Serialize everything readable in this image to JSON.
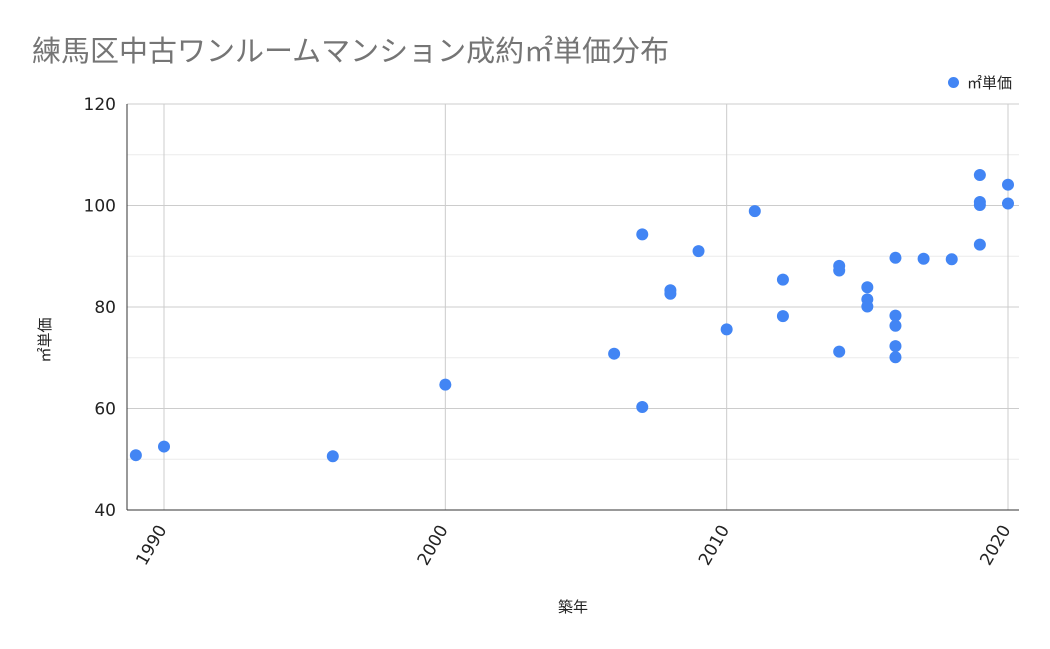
{
  "chart_data": {
    "type": "scatter",
    "title": "練馬区中古ワンルームマンション成約㎡単価分布",
    "xlabel": "築年",
    "ylabel": "㎡単価",
    "xlim": [
      1989,
      2020.4
    ],
    "ylim": [
      40,
      120
    ],
    "x_ticks": [
      1990,
      2000,
      2010,
      2020
    ],
    "y_ticks": [
      40,
      60,
      80,
      100,
      120
    ],
    "grid": true,
    "legend_position": "top-right",
    "series": [
      {
        "name": "㎡単価",
        "color": "#4285F4",
        "points": [
          {
            "x": 1989,
            "y": 50.8
          },
          {
            "x": 1990,
            "y": 52.5
          },
          {
            "x": 1996,
            "y": 50.6
          },
          {
            "x": 2000,
            "y": 64.7
          },
          {
            "x": 2006,
            "y": 70.8
          },
          {
            "x": 2007,
            "y": 94.3
          },
          {
            "x": 2007,
            "y": 60.3
          },
          {
            "x": 2008,
            "y": 83.3
          },
          {
            "x": 2008,
            "y": 82.6
          },
          {
            "x": 2009,
            "y": 91.0
          },
          {
            "x": 2010,
            "y": 75.6
          },
          {
            "x": 2011,
            "y": 98.9
          },
          {
            "x": 2012,
            "y": 85.4
          },
          {
            "x": 2012,
            "y": 78.2
          },
          {
            "x": 2014,
            "y": 88.1
          },
          {
            "x": 2014,
            "y": 87.2
          },
          {
            "x": 2014,
            "y": 71.2
          },
          {
            "x": 2015,
            "y": 83.9
          },
          {
            "x": 2015,
            "y": 81.5
          },
          {
            "x": 2015,
            "y": 80.1
          },
          {
            "x": 2016,
            "y": 89.7
          },
          {
            "x": 2016,
            "y": 78.3
          },
          {
            "x": 2016,
            "y": 76.3
          },
          {
            "x": 2016,
            "y": 72.3
          },
          {
            "x": 2016,
            "y": 70.1
          },
          {
            "x": 2017,
            "y": 89.5
          },
          {
            "x": 2018,
            "y": 89.4
          },
          {
            "x": 2019,
            "y": 106.0
          },
          {
            "x": 2019,
            "y": 100.7
          },
          {
            "x": 2019,
            "y": 100.1
          },
          {
            "x": 2019,
            "y": 92.3
          },
          {
            "x": 2020,
            "y": 104.1
          },
          {
            "x": 2020,
            "y": 100.4
          }
        ]
      }
    ]
  }
}
